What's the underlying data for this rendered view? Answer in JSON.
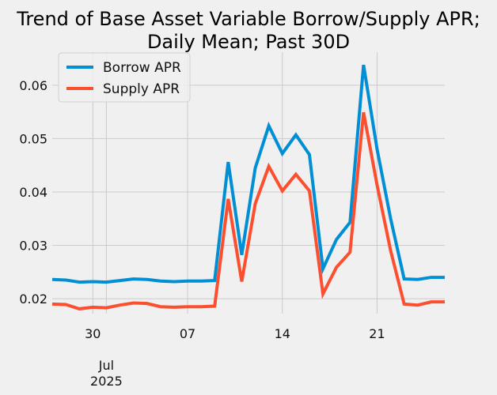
{
  "chart_data": {
    "type": "line",
    "title_line1": "Trend of Base Asset Variable Borrow/Supply APR;",
    "title_line2": "Daily Mean; Past 30D",
    "xlabel": "",
    "ylabel": "",
    "x": [
      "2025-06-27",
      "2025-06-28",
      "2025-06-29",
      "2025-06-30",
      "2025-07-01",
      "2025-07-02",
      "2025-07-03",
      "2025-07-04",
      "2025-07-05",
      "2025-07-06",
      "2025-07-07",
      "2025-07-08",
      "2025-07-09",
      "2025-07-10",
      "2025-07-11",
      "2025-07-12",
      "2025-07-13",
      "2025-07-14",
      "2025-07-15",
      "2025-07-16",
      "2025-07-17",
      "2025-07-18",
      "2025-07-19",
      "2025-07-20",
      "2025-07-21",
      "2025-07-22",
      "2025-07-23",
      "2025-07-24",
      "2025-07-25",
      "2025-07-26"
    ],
    "series": [
      {
        "name": "Borrow APR",
        "color": "#008fd5",
        "values": [
          0.0236,
          0.0235,
          0.0231,
          0.0232,
          0.0231,
          0.0234,
          0.0237,
          0.0236,
          0.0233,
          0.0232,
          0.0233,
          0.0233,
          0.0234,
          0.0456,
          0.0282,
          0.0445,
          0.0524,
          0.0472,
          0.0507,
          0.047,
          0.0256,
          0.0311,
          0.0343,
          0.0638,
          0.048,
          0.035,
          0.0237,
          0.0236,
          0.024,
          0.024
        ]
      },
      {
        "name": "Supply APR",
        "color": "#fc4f30",
        "values": [
          0.019,
          0.0189,
          0.0181,
          0.0184,
          0.0183,
          0.0188,
          0.0192,
          0.0191,
          0.0185,
          0.0184,
          0.0185,
          0.0185,
          0.0186,
          0.0387,
          0.0232,
          0.0378,
          0.0448,
          0.0402,
          0.0433,
          0.0402,
          0.0209,
          0.0259,
          0.0287,
          0.0549,
          0.0413,
          0.029,
          0.019,
          0.0188,
          0.0194,
          0.0194
        ]
      }
    ],
    "ylim": [
      0.0172,
      0.0662
    ],
    "y_ticks": [
      0.02,
      0.03,
      0.04,
      0.05,
      0.06
    ],
    "y_tick_labels": [
      "0.02",
      "0.03",
      "0.04",
      "0.05",
      "0.06"
    ],
    "x_ticks": [
      {
        "date": "2025-06-30",
        "label": "30"
      },
      {
        "date": "2025-07-07",
        "label": "07"
      },
      {
        "date": "2025-07-14",
        "label": "14"
      },
      {
        "date": "2025-07-21",
        "label": "21"
      }
    ],
    "x_major": {
      "date": "2025-07-01",
      "line1": "Jul",
      "line2": "2025"
    },
    "grid": true,
    "legend_position": "upper-left"
  }
}
